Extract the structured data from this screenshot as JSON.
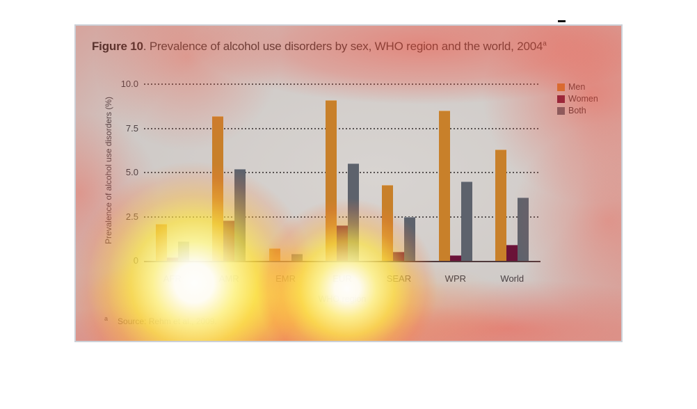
{
  "window": {
    "dash_glyph": "-"
  },
  "figure": {
    "title_bold": "Figure 10",
    "title_rest": ". Prevalence of alcohol use disorders by sex, WHO region and the world, 2004",
    "title_sup": "a",
    "footnote_marker": "a",
    "footnote_text": "Source: Rehm et al., 2009."
  },
  "chart_data": {
    "type": "bar",
    "title": "Figure 10. Prevalence of alcohol use disorders by sex, WHO region and the world, 2004",
    "categories": [
      "AFR",
      "AMR",
      "EMR",
      "EUR",
      "SEAR",
      "WPR",
      "World"
    ],
    "series": [
      {
        "name": "Men",
        "color": "#c8802a",
        "values": [
          2.1,
          8.2,
          0.7,
          9.1,
          4.3,
          8.5,
          6.3
        ]
      },
      {
        "name": "Women",
        "color": "#6a1238",
        "values": [
          0.2,
          2.3,
          0.0,
          2.0,
          0.5,
          0.3,
          0.9
        ]
      },
      {
        "name": "Both",
        "color": "#5d626c",
        "values": [
          1.1,
          5.2,
          0.4,
          5.5,
          2.5,
          4.5,
          3.6
        ]
      }
    ],
    "xlabel": "WHO region",
    "ylabel": "Prevalence of alcohol use disorders (%)",
    "ylim": [
      0,
      10
    ],
    "yticks": [
      0,
      2.5,
      5.0,
      7.5,
      10.0
    ],
    "ytick_labels": [
      "0",
      "2.5",
      "5.0",
      "7.5",
      "10.0"
    ],
    "grid": "horizontal-dotted",
    "legend_position": "top-right",
    "source": "Rehm et al., 2009"
  },
  "overlay": {
    "kind": "attention-heatmap",
    "hot_color": "#ffffff",
    "warm_color": "#ffe030",
    "base_color": "#f04b3a"
  }
}
